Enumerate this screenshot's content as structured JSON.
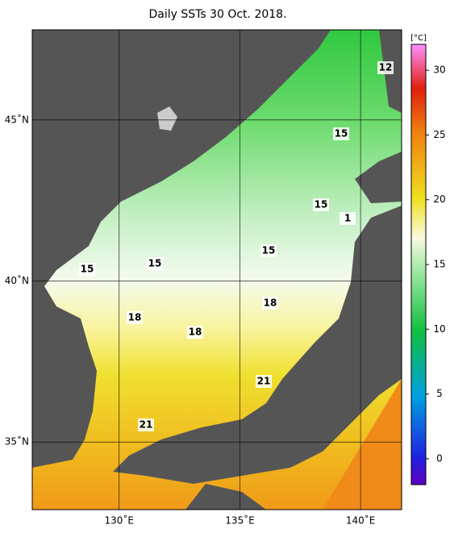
{
  "title": "Daily SSTs 30 Oct. 2018.",
  "map": {
    "xlim": [
      126.4,
      141.7
    ],
    "ylim": [
      32.9,
      47.8
    ],
    "xticks": [
      {
        "value": 130,
        "label": "130˚E"
      },
      {
        "value": 135,
        "label": "135˚E"
      },
      {
        "value": 140,
        "label": "140˚E"
      }
    ],
    "yticks": [
      {
        "value": 35,
        "label": "35˚N"
      },
      {
        "value": 40,
        "label": "40˚N"
      },
      {
        "value": 45,
        "label": "45˚N"
      }
    ],
    "grid": true,
    "contour_labels": [
      12,
      15,
      15,
      1,
      15,
      15,
      15,
      18,
      18,
      18,
      21,
      21
    ]
  },
  "colorbar": {
    "label": "[°C]",
    "lim": [
      -2,
      32
    ],
    "ticks": [
      0,
      5,
      10,
      15,
      20,
      25,
      30
    ]
  }
}
